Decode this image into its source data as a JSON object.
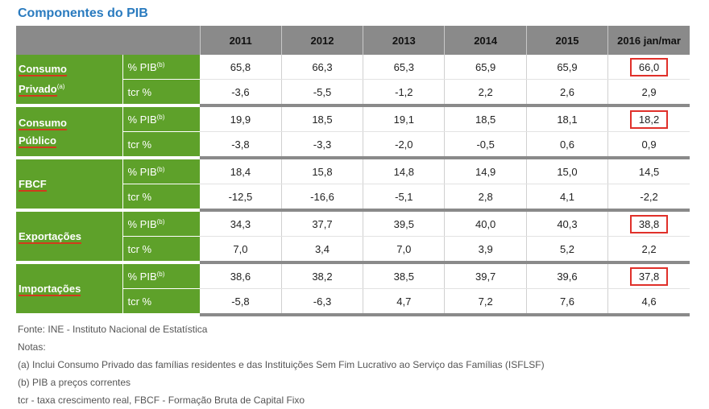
{
  "title": "Componentes do PIB",
  "years": [
    "2011",
    "2012",
    "2013",
    "2014",
    "2015",
    "2016 jan/mar"
  ],
  "rows": [
    {
      "category_line1": "Consumo",
      "category_line2": "Privado",
      "category_sup": "(a)",
      "pib_label": "% PIB",
      "pib_sup": "(b)",
      "tcr_label": "tcr %",
      "pib": [
        "65,8",
        "66,3",
        "65,3",
        "65,9",
        "65,9",
        "66,0"
      ],
      "tcr": [
        "-3,6",
        "-5,5",
        "-1,2",
        "2,2",
        "2,6",
        "2,9"
      ],
      "highlight_last_pib": true
    },
    {
      "category_line1": "Consumo",
      "category_line2": "Público",
      "category_sup": "",
      "pib_label": "% PIB",
      "pib_sup": "(b)",
      "tcr_label": "tcr %",
      "pib": [
        "19,9",
        "18,5",
        "19,1",
        "18,5",
        "18,1",
        "18,2"
      ],
      "tcr": [
        "-3,8",
        "-3,3",
        "-2,0",
        "-0,5",
        "0,6",
        "0,9"
      ],
      "highlight_last_pib": true
    },
    {
      "category_line1": "FBCF",
      "category_line2": "",
      "category_sup": "",
      "pib_label": "% PIB",
      "pib_sup": "(b)",
      "tcr_label": "tcr %",
      "pib": [
        "18,4",
        "15,8",
        "14,8",
        "14,9",
        "15,0",
        "14,5"
      ],
      "tcr": [
        "-12,5",
        "-16,6",
        "-5,1",
        "2,8",
        "4,1",
        "-2,2"
      ],
      "highlight_last_pib": false
    },
    {
      "category_line1": "Exportações",
      "category_line2": "",
      "category_sup": "",
      "pib_label": "% PIB",
      "pib_sup": "(b)",
      "tcr_label": "tcr %",
      "pib": [
        "34,3",
        "37,7",
        "39,5",
        "40,0",
        "40,3",
        "38,8"
      ],
      "tcr": [
        "7,0",
        "3,4",
        "7,0",
        "3,9",
        "5,2",
        "2,2"
      ],
      "highlight_last_pib": true
    },
    {
      "category_line1": "Importações",
      "category_line2": "",
      "category_sup": "",
      "pib_label": "% PIB",
      "pib_sup": "(b)",
      "tcr_label": "tcr %",
      "pib": [
        "38,6",
        "38,2",
        "38,5",
        "39,7",
        "39,6",
        "37,8"
      ],
      "tcr": [
        "-5,8",
        "-6,3",
        "4,7",
        "7,2",
        "7,6",
        "4,6"
      ],
      "highlight_last_pib": true
    }
  ],
  "notes": {
    "source": "Fonte: INE - Instituto Nacional de Estatística",
    "heading": "Notas:",
    "note_a": "(a) Inclui Consumo Privado das famílias residentes e das Instituições Sem Fim Lucrativo ao Serviço das Famílias (ISFLSF)",
    "note_b": "(b) PIB a preços correntes",
    "note_tcr": "tcr - taxa crescimento real, FBCF - Formação Bruta de Capital Fixo"
  },
  "colors": {
    "title_blue": "#2a7bbf",
    "header_grey": "#8a8a8a",
    "category_green": "#5ea12a",
    "underline_red": "#d13b1c",
    "highlight_red": "#e0302a"
  }
}
